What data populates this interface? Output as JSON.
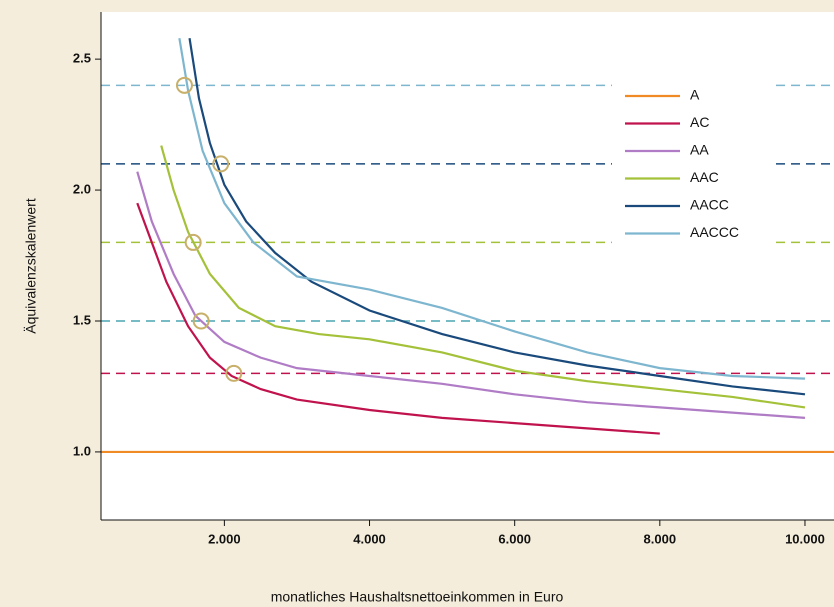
{
  "chart_data": {
    "type": "line",
    "x_label": "monatliches Haushaltsnettoeinkommen in Euro",
    "y_label": "Äquivalenzskalenwert",
    "xlim": [
      300,
      10400
    ],
    "ylim": [
      0.74,
      2.68
    ],
    "xticks": [
      {
        "value": 2000,
        "label": "2.000"
      },
      {
        "value": 4000,
        "label": "4.000"
      },
      {
        "value": 6000,
        "label": "6.000"
      },
      {
        "value": 8000,
        "label": "8.000"
      },
      {
        "value": 10000,
        "label": "10.000"
      }
    ],
    "yticks": [
      {
        "value": 1,
        "label": "1.0"
      },
      1.5,
      {
        "value": 2,
        "label": "2.0"
      },
      2.5
    ],
    "series": [
      {
        "name": "A",
        "color": "#f08a24",
        "x": [
          300,
          10400
        ],
        "values": [
          1,
          1
        ]
      },
      {
        "name": "AC",
        "color": "#c0134d",
        "x": [
          800,
          1000,
          1200,
          1500,
          1800,
          2100,
          2500,
          3000,
          4000,
          5000,
          6000,
          7000,
          8000
        ],
        "values": [
          1.95,
          1.8,
          1.65,
          1.48,
          1.36,
          1.29,
          1.24,
          1.2,
          1.16,
          1.13,
          1.11,
          1.09,
          1.07
        ]
      },
      {
        "name": "AA",
        "color": "#b07cc6",
        "x": [
          800,
          1000,
          1300,
          1600,
          2000,
          2500,
          3000,
          4000,
          5000,
          6000,
          7000,
          8000,
          9000,
          10000
        ],
        "values": [
          2.07,
          1.88,
          1.68,
          1.52,
          1.42,
          1.36,
          1.32,
          1.29,
          1.26,
          1.22,
          1.19,
          1.17,
          1.15,
          1.13
        ]
      },
      {
        "name": "AAC",
        "color": "#a4c13a",
        "x": [
          1130,
          1300,
          1500,
          1800,
          2200,
          2700,
          3300,
          4000,
          5000,
          6000,
          7000,
          8000,
          9000,
          10000
        ],
        "values": [
          2.17,
          2.0,
          1.84,
          1.68,
          1.55,
          1.48,
          1.45,
          1.43,
          1.38,
          1.31,
          1.27,
          1.24,
          1.21,
          1.17
        ]
      },
      {
        "name": "AACC",
        "color": "#1a4a7c",
        "x": [
          1520,
          1650,
          1800,
          2000,
          2300,
          2700,
          3200,
          4000,
          5000,
          6000,
          7000,
          8000,
          9000,
          10000
        ],
        "values": [
          2.58,
          2.35,
          2.18,
          2.02,
          1.88,
          1.76,
          1.65,
          1.54,
          1.45,
          1.38,
          1.33,
          1.29,
          1.25,
          1.22
        ]
      },
      {
        "name": "AACCC",
        "color": "#7eb6cf",
        "x": [
          1380,
          1500,
          1700,
          2000,
          2400,
          3000,
          4000,
          5000,
          6000,
          7000,
          8000,
          9000,
          10000
        ],
        "values": [
          2.58,
          2.38,
          2.15,
          1.95,
          1.8,
          1.67,
          1.62,
          1.55,
          1.46,
          1.38,
          1.32,
          1.29,
          1.28
        ]
      }
    ],
    "reference_lines": [
      {
        "value": 2.4,
        "color": "#7eb6cf"
      },
      {
        "value": 2.1,
        "color": "#1a4a7c"
      },
      {
        "value": 1.8,
        "color": "#a4c13a"
      },
      {
        "value": 1.5,
        "color": "#4aa6b0"
      },
      {
        "value": 1.3,
        "color": "#c0134d"
      }
    ],
    "markers": {
      "color": "#c8b06a",
      "x": [
        1450,
        1950,
        1570,
        1680,
        2130
      ],
      "values": [
        2.4,
        2.1,
        1.8,
        1.5,
        1.3
      ]
    }
  }
}
